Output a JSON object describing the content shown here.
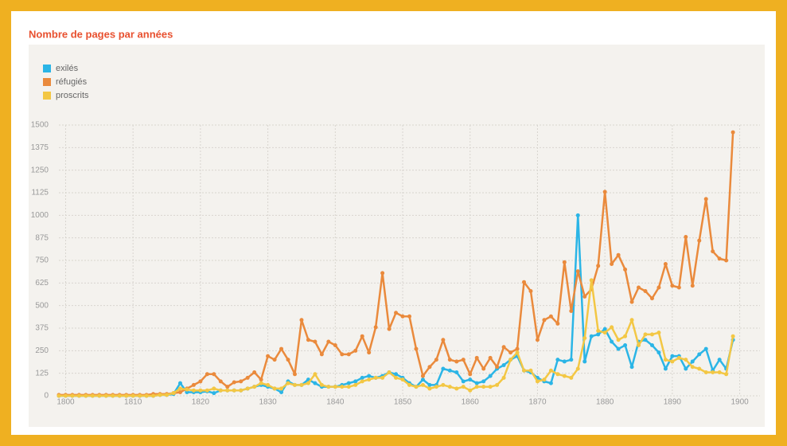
{
  "chart_data": {
    "type": "line",
    "title": "Nombre de pages par années",
    "x": [
      1799,
      1800,
      1801,
      1802,
      1803,
      1804,
      1805,
      1806,
      1807,
      1808,
      1809,
      1810,
      1811,
      1812,
      1813,
      1814,
      1815,
      1816,
      1817,
      1818,
      1819,
      1820,
      1821,
      1822,
      1823,
      1824,
      1825,
      1826,
      1827,
      1828,
      1829,
      1830,
      1831,
      1832,
      1833,
      1834,
      1835,
      1836,
      1837,
      1838,
      1839,
      1840,
      1841,
      1842,
      1843,
      1844,
      1845,
      1846,
      1847,
      1848,
      1849,
      1850,
      1851,
      1852,
      1853,
      1854,
      1855,
      1856,
      1857,
      1858,
      1859,
      1860,
      1861,
      1862,
      1863,
      1864,
      1865,
      1866,
      1867,
      1868,
      1869,
      1870,
      1871,
      1872,
      1873,
      1874,
      1875,
      1876,
      1877,
      1878,
      1879,
      1880,
      1881,
      1882,
      1883,
      1884,
      1885,
      1886,
      1887,
      1888,
      1889,
      1890,
      1891,
      1892,
      1893,
      1894,
      1895,
      1896,
      1897,
      1898,
      1899
    ],
    "series": [
      {
        "name": "exilés",
        "color": "#2bb5e6",
        "values": [
          0,
          0,
          0,
          0,
          0,
          0,
          0,
          0,
          0,
          0,
          0,
          0,
          0,
          0,
          0,
          5,
          5,
          10,
          70,
          20,
          20,
          20,
          25,
          15,
          30,
          30,
          30,
          30,
          40,
          50,
          60,
          50,
          40,
          20,
          80,
          60,
          60,
          90,
          70,
          50,
          50,
          50,
          60,
          70,
          80,
          100,
          110,
          100,
          110,
          130,
          120,
          100,
          70,
          50,
          90,
          60,
          60,
          150,
          140,
          130,
          80,
          90,
          70,
          80,
          110,
          150,
          170,
          200,
          220,
          140,
          130,
          100,
          80,
          70,
          200,
          190,
          200,
          1000,
          190,
          330,
          340,
          370,
          300,
          260,
          280,
          160,
          300,
          310,
          280,
          240,
          150,
          220,
          220,
          150,
          190,
          230,
          260,
          140,
          200,
          150,
          310
        ]
      },
      {
        "name": "réfugiés",
        "color": "#ea8a3c",
        "values": [
          5,
          5,
          5,
          5,
          5,
          5,
          5,
          5,
          5,
          5,
          5,
          5,
          5,
          5,
          10,
          10,
          10,
          15,
          20,
          40,
          60,
          80,
          120,
          120,
          80,
          50,
          75,
          80,
          100,
          130,
          90,
          220,
          200,
          260,
          200,
          120,
          420,
          310,
          300,
          230,
          300,
          280,
          230,
          230,
          250,
          330,
          240,
          380,
          680,
          370,
          460,
          440,
          440,
          260,
          110,
          160,
          200,
          310,
          200,
          190,
          200,
          120,
          210,
          150,
          210,
          160,
          270,
          240,
          260,
          630,
          580,
          310,
          420,
          440,
          400,
          740,
          470,
          690,
          550,
          590,
          720,
          1130,
          730,
          780,
          700,
          520,
          600,
          580,
          540,
          600,
          730,
          610,
          600,
          880,
          610,
          860,
          1090,
          800,
          760,
          750,
          1460
        ]
      },
      {
        "name": "proscrits",
        "color": "#f3c744",
        "values": [
          0,
          0,
          0,
          0,
          0,
          0,
          0,
          0,
          0,
          0,
          0,
          0,
          0,
          0,
          0,
          5,
          5,
          15,
          40,
          35,
          30,
          30,
          30,
          40,
          30,
          30,
          30,
          30,
          40,
          50,
          70,
          60,
          40,
          40,
          70,
          60,
          60,
          70,
          120,
          60,
          50,
          50,
          50,
          50,
          60,
          80,
          90,
          100,
          100,
          130,
          100,
          90,
          60,
          50,
          60,
          40,
          50,
          60,
          50,
          40,
          50,
          30,
          50,
          50,
          50,
          60,
          100,
          200,
          240,
          140,
          140,
          80,
          90,
          140,
          120,
          110,
          100,
          150,
          320,
          640,
          360,
          350,
          380,
          310,
          330,
          420,
          280,
          340,
          340,
          350,
          200,
          190,
          210,
          200,
          160,
          150,
          130,
          130,
          130,
          120,
          330
        ]
      }
    ],
    "xlim": [
      1799,
      1903
    ],
    "xticks": [
      1800,
      1810,
      1820,
      1830,
      1840,
      1850,
      1860,
      1870,
      1880,
      1890,
      1900
    ],
    "ylim": [
      0,
      1500
    ],
    "yticks": [
      0,
      125,
      250,
      375,
      500,
      625,
      750,
      875,
      1000,
      1125,
      1250,
      1375,
      1500
    ],
    "grid": true,
    "legend": "top-left"
  }
}
